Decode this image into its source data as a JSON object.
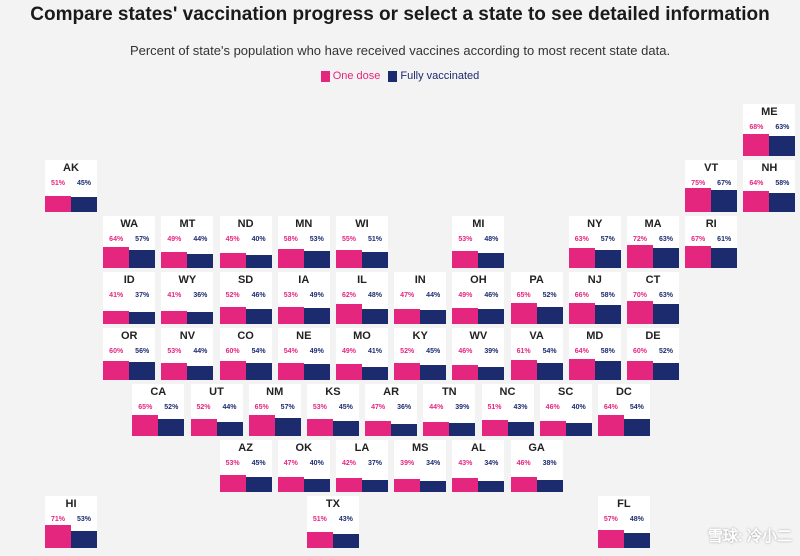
{
  "header": {
    "title": "Compare states' vaccination progress or select a state to see detailed information",
    "subtitle": "Percent of state's population who have received vaccines according to most recent state data."
  },
  "legend": {
    "one_dose": "One dose",
    "fully_vaccinated": "Fully vaccinated"
  },
  "colors": {
    "one_dose": "#e5267f",
    "fully_vaccinated": "#1c2b6e",
    "tile_bg": "#ffffff"
  },
  "watermark": "雪球: 冷小二",
  "chart_data": {
    "type": "bar",
    "layout": "tile-grid-map",
    "title": "Compare states' vaccination progress or select a state to see detailed information",
    "subtitle": "Percent of state's population who have received vaccines according to most recent state data.",
    "series": [
      {
        "name": "One dose",
        "color": "#e5267f"
      },
      {
        "name": "Fully vaccinated",
        "color": "#1c2b6e"
      }
    ],
    "ylim": [
      0,
      100
    ],
    "legend_position": "top-center",
    "states": [
      {
        "abbr": "ME",
        "one": 68,
        "full": 63,
        "row": 0,
        "col": 12
      },
      {
        "abbr": "AK",
        "one": 51,
        "full": 45,
        "row": 1,
        "col": 0
      },
      {
        "abbr": "VT",
        "one": 75,
        "full": 67,
        "row": 1,
        "col": 11
      },
      {
        "abbr": "NH",
        "one": 64,
        "full": 58,
        "row": 1,
        "col": 12
      },
      {
        "abbr": "WA",
        "one": 64,
        "full": 57,
        "row": 2,
        "col": 1
      },
      {
        "abbr": "MT",
        "one": 49,
        "full": 44,
        "row": 2,
        "col": 2
      },
      {
        "abbr": "ND",
        "one": 45,
        "full": 40,
        "row": 2,
        "col": 3
      },
      {
        "abbr": "MN",
        "one": 58,
        "full": 53,
        "row": 2,
        "col": 4
      },
      {
        "abbr": "WI",
        "one": 55,
        "full": 51,
        "row": 2,
        "col": 5
      },
      {
        "abbr": "MI",
        "one": 53,
        "full": 48,
        "row": 2,
        "col": 7
      },
      {
        "abbr": "NY",
        "one": 63,
        "full": 57,
        "row": 2,
        "col": 9
      },
      {
        "abbr": "MA",
        "one": 72,
        "full": 63,
        "row": 2,
        "col": 10
      },
      {
        "abbr": "RI",
        "one": 67,
        "full": 61,
        "row": 2,
        "col": 11
      },
      {
        "abbr": "ID",
        "one": 41,
        "full": 37,
        "row": 3,
        "col": 1
      },
      {
        "abbr": "WY",
        "one": 41,
        "full": 36,
        "row": 3,
        "col": 2
      },
      {
        "abbr": "SD",
        "one": 52,
        "full": 46,
        "row": 3,
        "col": 3
      },
      {
        "abbr": "IA",
        "one": 53,
        "full": 49,
        "row": 3,
        "col": 4
      },
      {
        "abbr": "IL",
        "one": 62,
        "full": 48,
        "row": 3,
        "col": 5
      },
      {
        "abbr": "IN",
        "one": 47,
        "full": 44,
        "row": 3,
        "col": 6
      },
      {
        "abbr": "OH",
        "one": 49,
        "full": 46,
        "row": 3,
        "col": 7
      },
      {
        "abbr": "PA",
        "one": 65,
        "full": 52,
        "row": 3,
        "col": 8
      },
      {
        "abbr": "NJ",
        "one": 66,
        "full": 58,
        "row": 3,
        "col": 9
      },
      {
        "abbr": "CT",
        "one": 70,
        "full": 63,
        "row": 3,
        "col": 10
      },
      {
        "abbr": "OR",
        "one": 60,
        "full": 56,
        "row": 4,
        "col": 1
      },
      {
        "abbr": "NV",
        "one": 53,
        "full": 44,
        "row": 4,
        "col": 2
      },
      {
        "abbr": "CO",
        "one": 60,
        "full": 54,
        "row": 4,
        "col": 3
      },
      {
        "abbr": "NE",
        "one": 54,
        "full": 49,
        "row": 4,
        "col": 4
      },
      {
        "abbr": "MO",
        "one": 49,
        "full": 41,
        "row": 4,
        "col": 5
      },
      {
        "abbr": "KY",
        "one": 52,
        "full": 45,
        "row": 4,
        "col": 6
      },
      {
        "abbr": "WV",
        "one": 46,
        "full": 39,
        "row": 4,
        "col": 7
      },
      {
        "abbr": "VA",
        "one": 61,
        "full": 54,
        "row": 4,
        "col": 8
      },
      {
        "abbr": "MD",
        "one": 64,
        "full": 58,
        "row": 4,
        "col": 9
      },
      {
        "abbr": "DE",
        "one": 60,
        "full": 52,
        "row": 4,
        "col": 10
      },
      {
        "abbr": "CA",
        "one": 65,
        "full": 52,
        "row": 5,
        "col": 1.5
      },
      {
        "abbr": "UT",
        "one": 52,
        "full": 44,
        "row": 5,
        "col": 2.5
      },
      {
        "abbr": "NM",
        "one": 65,
        "full": 57,
        "row": 5,
        "col": 3.5
      },
      {
        "abbr": "KS",
        "one": 53,
        "full": 45,
        "row": 5,
        "col": 4.5
      },
      {
        "abbr": "AR",
        "one": 47,
        "full": 36,
        "row": 5,
        "col": 5.5
      },
      {
        "abbr": "TN",
        "one": 44,
        "full": 39,
        "row": 5,
        "col": 6.5
      },
      {
        "abbr": "NC",
        "one": 51,
        "full": 43,
        "row": 5,
        "col": 7.5
      },
      {
        "abbr": "SC",
        "one": 46,
        "full": 40,
        "row": 5,
        "col": 8.5
      },
      {
        "abbr": "DC",
        "one": 64,
        "full": 54,
        "row": 5,
        "col": 9.5
      },
      {
        "abbr": "AZ",
        "one": 53,
        "full": 45,
        "row": 6,
        "col": 3
      },
      {
        "abbr": "OK",
        "one": 47,
        "full": 40,
        "row": 6,
        "col": 4
      },
      {
        "abbr": "LA",
        "one": 42,
        "full": 37,
        "row": 6,
        "col": 5
      },
      {
        "abbr": "MS",
        "one": 39,
        "full": 34,
        "row": 6,
        "col": 6
      },
      {
        "abbr": "AL",
        "one": 43,
        "full": 34,
        "row": 6,
        "col": 7
      },
      {
        "abbr": "GA",
        "one": 46,
        "full": 38,
        "row": 6,
        "col": 8
      },
      {
        "abbr": "HI",
        "one": 71,
        "full": 53,
        "row": 7,
        "col": 0
      },
      {
        "abbr": "TX",
        "one": 51,
        "full": 43,
        "row": 7,
        "col": 4.5
      },
      {
        "abbr": "FL",
        "one": 57,
        "full": 48,
        "row": 7,
        "col": 9.5
      }
    ]
  }
}
